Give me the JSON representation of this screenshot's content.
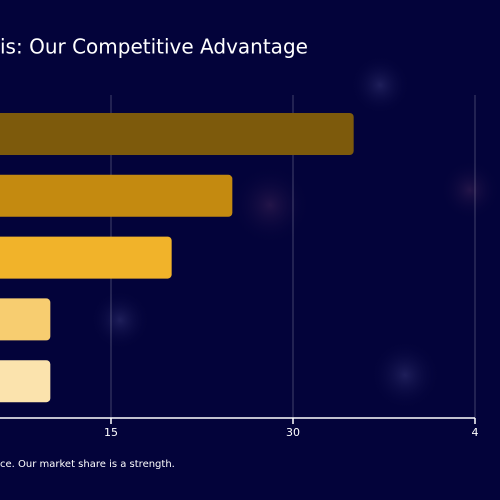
{
  "chart_data": {
    "type": "bar",
    "orientation": "horizontal",
    "title": "is: Our Competitive Advantage",
    "footnote": "ce. Our market share is a strength.",
    "categories": [
      null,
      null,
      null,
      null,
      null
    ],
    "values": [
      35,
      25,
      20,
      10,
      10
    ],
    "colors": [
      "#7d5a0c",
      "#c48a10",
      "#f1b32a",
      "#f7cd70",
      "#fbe3ad"
    ],
    "xlim": [
      0,
      45
    ],
    "xticks": [
      15,
      30,
      {
        "value": 45,
        "label": "4"
      }
    ],
    "grid": true
  }
}
